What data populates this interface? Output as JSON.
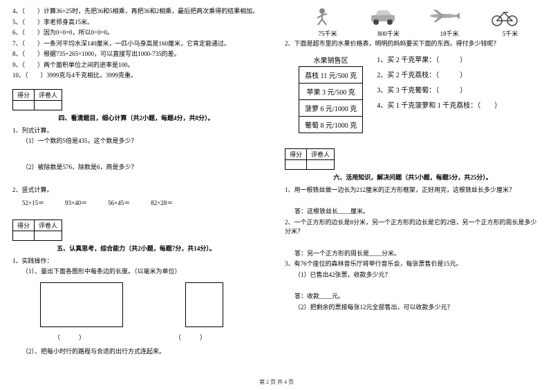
{
  "left": {
    "tf": [
      {
        "n": "4、",
        "t": "（　　）计算36×25时，先把36和5相乘，再把36和2相乘，最后把两次乘得的结果相加。"
      },
      {
        "n": "5、",
        "t": "（　　）李老师身高15米。"
      },
      {
        "n": "6、",
        "t": "（　　）因为0÷0=0，所以0÷0=0。"
      },
      {
        "n": "7、",
        "t": "（　　）一条河平均水深140厘米，一匹小马身高是160厘米，它肯定能通过。"
      },
      {
        "n": "8、",
        "t": "（　　）根据735+265=1000，可以直接写出1000-735的差。"
      },
      {
        "n": "9、",
        "t": "（　　）两个面积单位之间的进率是100。"
      },
      {
        "n": "10、",
        "t": "（　　）3999克与4千克相比，3999克重。"
      }
    ],
    "score_h1": "得分",
    "score_h2": "评卷人",
    "sec4": "四、看清题目，细心计算（共2小题，每题4分，共8分）。",
    "q1": "1、列式计算。",
    "q1a": "（1）一个数的5倍是435，这个数是多少？",
    "q1b": "（2）被除数是576，除数是6，商是多少？",
    "q2": "2、竖式计算。",
    "calc": [
      "52×15＝",
      "93×40＝",
      "56×45＝",
      "82×28＝"
    ],
    "sec5": "五、认真思考，综合能力（共2小题，每题7分，共14分）。",
    "p1": "1、实践操作：",
    "p1a": "（1）、量出下面各图形中每条边的长度。（以毫米为单位）",
    "br1": "（　　　）",
    "br2": "（　　　）",
    "p1b": "（2）、把每小时行的路程与合适的出行方式连起来。"
  },
  "right": {
    "speeds": [
      "75千米",
      "800千米",
      "18千米",
      "5千米"
    ],
    "q2": "2、下面是超市里的水果价格表，明明的妈妈要买下面的东西，得付多少钱呢？",
    "fruit_header": "水果销售区",
    "fruits": [
      "荔枝 11 元/500 克",
      "苹果 3 元/500 克",
      "菠萝 6 元/1000 克",
      "葡萄 8 元/1000 克"
    ],
    "buys": [
      "1、买 2 千克苹果：（　　　）",
      "2、买 2 千克荔枝：（　　　）",
      "3、买 3 千克葡萄：（　　　）",
      "4、买 1 千克菠萝和 1 千克荔枝：（　　）"
    ],
    "score_h1": "得分",
    "score_h2": "评卷人",
    "sec6": "六、活用知识，解决问题（共5小题，每题5分，共25分）。",
    "a1": "1、用一根铁丝做一边长为212厘米的正方形框架，正好用完，这根铁丝长多少厘米？",
    "a1ans": "答：这根铁丝长____厘米。",
    "a2": "2、一个正方形的边长是8分米，另一个正方形的边长是它的2倍，另一个正方形的周长是多少分米？",
    "a2ans": "答：另一个正方形的周长是____分米。",
    "a3": "3、有76个座位的森林音乐厅将举行音乐会，每张票售价是15元。",
    "a3a": "（1）已售出42张票，收款多少元？",
    "a3ans": "答：收款____元。",
    "a3b": "（2）把剩余的票按每张12元全部售出，可以收款多少元？"
  },
  "footer": "第 2 页 共 4 页"
}
